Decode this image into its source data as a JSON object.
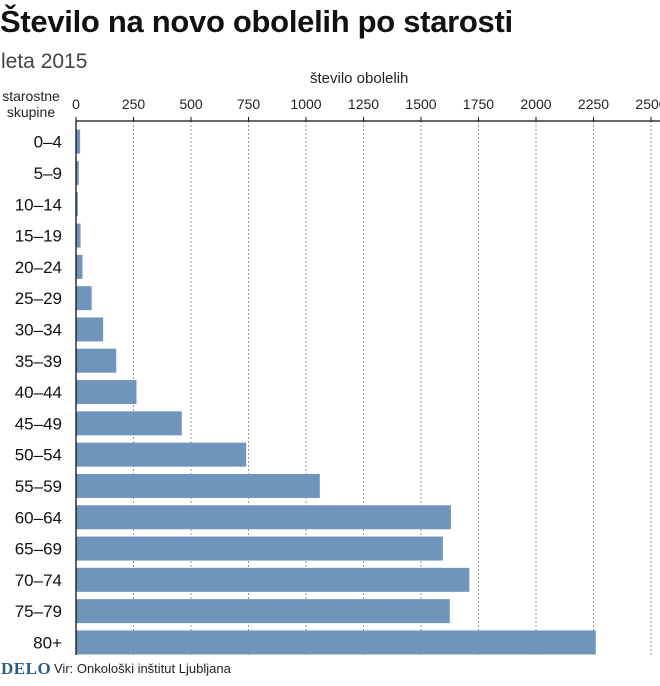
{
  "title": "Število na novo obolelih po starosti",
  "subtitle": "leta 2015",
  "footer": {
    "logo": "DELO",
    "source": "Vir: Onkološki inštitut Ljubljana"
  },
  "colors": {
    "bar": "#7095bd",
    "grid": "#9a9a9a",
    "axis": "#111111",
    "logo": "#2a5d86"
  },
  "chart_data": {
    "type": "bar",
    "orientation": "horizontal",
    "xlabel": "število obolelih",
    "ylabel": "starostne skupine",
    "xlim": [
      0,
      2500
    ],
    "xticks": [
      0,
      250,
      500,
      750,
      1000,
      1250,
      1500,
      1750,
      2000,
      2250,
      2500
    ],
    "grid": "vertical-dashed",
    "categories": [
      "0–4",
      "5–9",
      "10–14",
      "15–19",
      "20–24",
      "25–29",
      "30–34",
      "35–39",
      "40–44",
      "45–49",
      "50–54",
      "55–59",
      "60–64",
      "65–69",
      "70–74",
      "75–79",
      "80+"
    ],
    "values": [
      18,
      12,
      8,
      20,
      28,
      68,
      118,
      175,
      263,
      460,
      740,
      1060,
      1630,
      1595,
      1710,
      1625,
      2260
    ]
  }
}
